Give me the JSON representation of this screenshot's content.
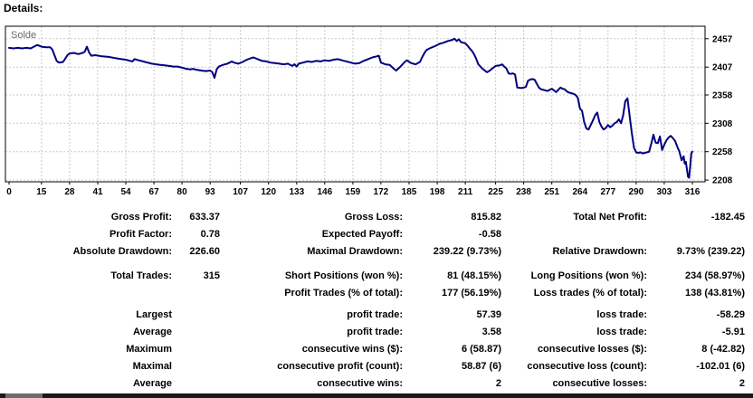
{
  "header": {
    "title": "Details:"
  },
  "chart_data": {
    "type": "line",
    "series_label": "Solde",
    "line_color": "#000080",
    "grid": true,
    "legend_position": "top-left",
    "xlabel": "",
    "ylabel": "",
    "x_ticks": [
      0,
      15,
      28,
      41,
      54,
      67,
      80,
      93,
      107,
      120,
      133,
      146,
      159,
      172,
      185,
      198,
      211,
      225,
      238,
      251,
      264,
      277,
      290,
      303,
      316
    ],
    "y_ticks": [
      2457,
      2407,
      2358,
      2308,
      2258,
      2208
    ],
    "x_range": [
      0,
      316
    ],
    "y_range": [
      2205,
      2479
    ],
    "points": [
      [
        0,
        2441
      ],
      [
        2,
        2440
      ],
      [
        4,
        2441
      ],
      [
        6,
        2440
      ],
      [
        8,
        2441
      ],
      [
        10,
        2440
      ],
      [
        12,
        2444
      ],
      [
        13,
        2446
      ],
      [
        15,
        2443
      ],
      [
        17,
        2442
      ],
      [
        19,
        2442
      ],
      [
        20,
        2438
      ],
      [
        21,
        2428
      ],
      [
        22,
        2418
      ],
      [
        23,
        2415
      ],
      [
        25,
        2416
      ],
      [
        26,
        2422
      ],
      [
        27,
        2428
      ],
      [
        28,
        2431
      ],
      [
        30,
        2432
      ],
      [
        32,
        2430
      ],
      [
        34,
        2432
      ],
      [
        35,
        2434
      ],
      [
        36,
        2443
      ],
      [
        37,
        2433
      ],
      [
        38,
        2427
      ],
      [
        40,
        2428
      ],
      [
        43,
        2426
      ],
      [
        46,
        2425
      ],
      [
        49,
        2423
      ],
      [
        52,
        2421
      ],
      [
        54,
        2420
      ],
      [
        56,
        2418
      ],
      [
        57,
        2417
      ],
      [
        58,
        2421
      ],
      [
        60,
        2419
      ],
      [
        62,
        2417
      ],
      [
        64,
        2415
      ],
      [
        66,
        2413
      ],
      [
        68,
        2412
      ],
      [
        70,
        2411
      ],
      [
        72,
        2410
      ],
      [
        74,
        2409
      ],
      [
        76,
        2408
      ],
      [
        78,
        2408
      ],
      [
        80,
        2406
      ],
      [
        82,
        2404
      ],
      [
        84,
        2403
      ],
      [
        85,
        2404
      ],
      [
        87,
        2402
      ],
      [
        89,
        2401
      ],
      [
        91,
        2400
      ],
      [
        93,
        2401
      ],
      [
        94,
        2398
      ],
      [
        95,
        2388
      ],
      [
        96,
        2403
      ],
      [
        97,
        2408
      ],
      [
        99,
        2411
      ],
      [
        101,
        2413
      ],
      [
        102,
        2415
      ],
      [
        103,
        2417
      ],
      [
        104,
        2415
      ],
      [
        106,
        2413
      ],
      [
        108,
        2416
      ],
      [
        110,
        2420
      ],
      [
        112,
        2423
      ],
      [
        113,
        2424
      ],
      [
        115,
        2421
      ],
      [
        117,
        2418
      ],
      [
        119,
        2417
      ],
      [
        121,
        2415
      ],
      [
        123,
        2414
      ],
      [
        125,
        2413
      ],
      [
        127,
        2412
      ],
      [
        129,
        2413
      ],
      [
        130,
        2411
      ],
      [
        131,
        2409
      ],
      [
        132,
        2412
      ],
      [
        133,
        2408
      ],
      [
        134,
        2413
      ],
      [
        136,
        2415
      ],
      [
        138,
        2417
      ],
      [
        140,
        2416
      ],
      [
        142,
        2418
      ],
      [
        144,
        2417
      ],
      [
        146,
        2419
      ],
      [
        148,
        2418
      ],
      [
        150,
        2420
      ],
      [
        152,
        2421
      ],
      [
        154,
        2419
      ],
      [
        156,
        2417
      ],
      [
        158,
        2415
      ],
      [
        160,
        2413
      ],
      [
        162,
        2414
      ],
      [
        164,
        2418
      ],
      [
        166,
        2421
      ],
      [
        168,
        2424
      ],
      [
        170,
        2426
      ],
      [
        171,
        2427
      ],
      [
        172,
        2415
      ],
      [
        174,
        2412
      ],
      [
        176,
        2411
      ],
      [
        178,
        2404
      ],
      [
        179,
        2401
      ],
      [
        181,
        2408
      ],
      [
        183,
        2416
      ],
      [
        184,
        2419
      ],
      [
        186,
        2414
      ],
      [
        188,
        2412
      ],
      [
        190,
        2416
      ],
      [
        191,
        2424
      ],
      [
        192,
        2431
      ],
      [
        193,
        2437
      ],
      [
        195,
        2441
      ],
      [
        197,
        2444
      ],
      [
        199,
        2448
      ],
      [
        201,
        2450
      ],
      [
        203,
        2453
      ],
      [
        205,
        2455
      ],
      [
        206,
        2457
      ],
      [
        207,
        2453
      ],
      [
        208,
        2456
      ],
      [
        209,
        2451
      ],
      [
        211,
        2449
      ],
      [
        212,
        2445
      ],
      [
        213,
        2440
      ],
      [
        214,
        2436
      ],
      [
        215,
        2430
      ],
      [
        216,
        2422
      ],
      [
        217,
        2412
      ],
      [
        219,
        2404
      ],
      [
        221,
        2398
      ],
      [
        222,
        2400
      ],
      [
        223,
        2403
      ],
      [
        225,
        2409
      ],
      [
        227,
        2410
      ],
      [
        228,
        2412
      ],
      [
        229,
        2408
      ],
      [
        230,
        2405
      ],
      [
        231,
        2396
      ],
      [
        232,
        2395
      ],
      [
        233,
        2396
      ],
      [
        234,
        2394
      ],
      [
        235,
        2371
      ],
      [
        237,
        2370
      ],
      [
        239,
        2372
      ],
      [
        240,
        2383
      ],
      [
        241,
        2385
      ],
      [
        242,
        2386
      ],
      [
        243,
        2385
      ],
      [
        244,
        2378
      ],
      [
        245,
        2371
      ],
      [
        246,
        2368
      ],
      [
        248,
        2366
      ],
      [
        249,
        2365
      ],
      [
        250,
        2367
      ],
      [
        251,
        2369
      ],
      [
        252,
        2366
      ],
      [
        253,
        2363
      ],
      [
        254,
        2367
      ],
      [
        255,
        2371
      ],
      [
        256,
        2369
      ],
      [
        257,
        2368
      ],
      [
        258,
        2364
      ],
      [
        259,
        2362
      ],
      [
        261,
        2360
      ],
      [
        262,
        2358
      ],
      [
        263,
        2353
      ],
      [
        264,
        2334
      ],
      [
        265,
        2330
      ],
      [
        266,
        2310
      ],
      [
        267,
        2299
      ],
      [
        268,
        2297
      ],
      [
        269,
        2305
      ],
      [
        270,
        2313
      ],
      [
        271,
        2322
      ],
      [
        272,
        2327
      ],
      [
        273,
        2310
      ],
      [
        274,
        2302
      ],
      [
        275,
        2297
      ],
      [
        276,
        2300
      ],
      [
        277,
        2305
      ],
      [
        278,
        2301
      ],
      [
        279,
        2304
      ],
      [
        280,
        2308
      ],
      [
        281,
        2310
      ],
      [
        282,
        2315
      ],
      [
        283,
        2308
      ],
      [
        284,
        2322
      ],
      [
        285,
        2347
      ],
      [
        286,
        2352
      ],
      [
        287,
        2321
      ],
      [
        288,
        2291
      ],
      [
        289,
        2265
      ],
      [
        290,
        2257
      ],
      [
        291,
        2256
      ],
      [
        292,
        2257
      ],
      [
        293,
        2255
      ],
      [
        294,
        2256
      ],
      [
        295,
        2257
      ],
      [
        296,
        2258
      ],
      [
        297,
        2272
      ],
      [
        298,
        2288
      ],
      [
        299,
        2274
      ],
      [
        300,
        2273
      ],
      [
        301,
        2285
      ],
      [
        302,
        2261
      ],
      [
        303,
        2270
      ],
      [
        304,
        2278
      ],
      [
        305,
        2283
      ],
      [
        306,
        2286
      ],
      [
        307,
        2282
      ],
      [
        308,
        2277
      ],
      [
        309,
        2267
      ],
      [
        310,
        2258
      ],
      [
        311,
        2243
      ],
      [
        312,
        2250
      ],
      [
        312.5,
        2237
      ],
      [
        313,
        2240
      ],
      [
        314,
        2214
      ],
      [
        314.5,
        2212
      ],
      [
        315,
        2232
      ],
      [
        315.5,
        2255
      ],
      [
        316,
        2258
      ]
    ]
  },
  "stats": {
    "rows": [
      {
        "cells": [
          "Gross Profit:",
          "633.37",
          "Gross Loss:",
          "815.82",
          "Total Net Profit:",
          "-182.45"
        ],
        "gap": ""
      },
      {
        "cells": [
          "Profit Factor:",
          "0.78",
          "Expected Payoff:",
          "-0.58",
          "",
          ""
        ],
        "gap": ""
      },
      {
        "cells": [
          "Absolute Drawdown:",
          "226.60",
          "Maximal Drawdown:",
          "239.22 (9.73%)",
          "Relative Drawdown:",
          "9.73% (239.22)"
        ],
        "gap": ""
      },
      {
        "cells": [
          "Total Trades:",
          "315",
          "Short Positions (won %):",
          "81 (48.15%)",
          "Long Positions (won %):",
          "234 (58.97%)"
        ],
        "gap": "lg"
      },
      {
        "cells": [
          "",
          "",
          "Profit Trades (% of total):",
          "177 (56.19%)",
          "Loss trades (% of total):",
          "138 (43.81%)"
        ],
        "gap": ""
      },
      {
        "cells": [
          "Largest",
          "",
          "profit trade:",
          "57.39",
          "loss trade:",
          "-58.29"
        ],
        "gap": "sm"
      },
      {
        "cells": [
          "Average",
          "",
          "profit trade:",
          "3.58",
          "loss trade:",
          "-5.91"
        ],
        "gap": ""
      },
      {
        "cells": [
          "Maximum",
          "",
          "consecutive wins ($):",
          "6 (58.87)",
          "consecutive losses ($):",
          "8 (-42.82)"
        ],
        "gap": ""
      },
      {
        "cells": [
          "Maximal",
          "",
          "consecutive profit (count):",
          "58.87 (6)",
          "consecutive loss (count):",
          "-102.01 (6)"
        ],
        "gap": ""
      },
      {
        "cells": [
          "Average",
          "",
          "consecutive wins:",
          "2",
          "consecutive losses:",
          "2"
        ],
        "gap": ""
      }
    ]
  }
}
